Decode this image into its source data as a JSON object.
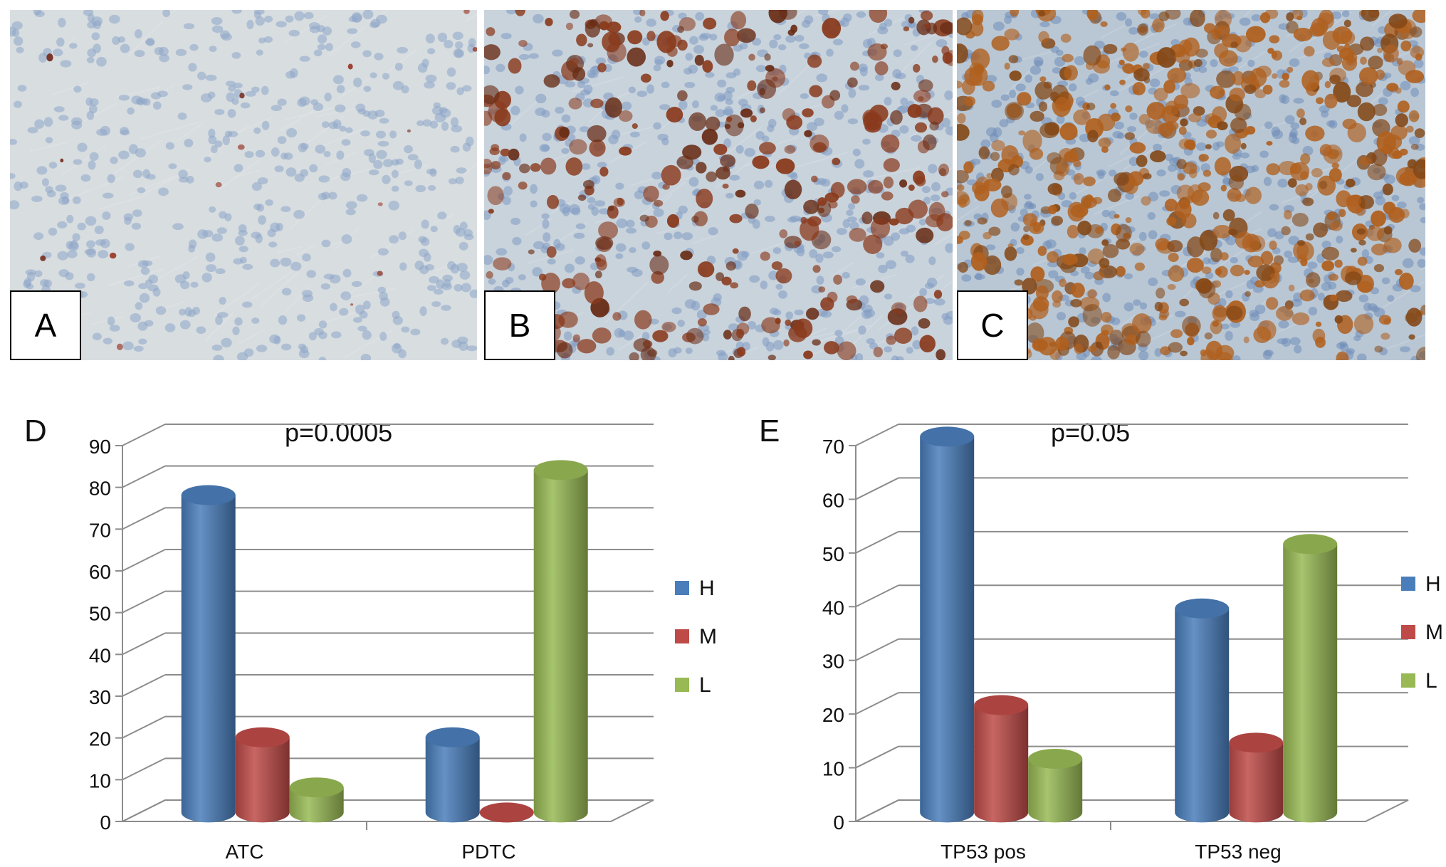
{
  "panels": [
    {
      "label": "A",
      "tissue": "#d8dde0",
      "stain_density": 0.01,
      "nucleus": "#8ea6c9",
      "stain": "#9a3a2a",
      "name": "micrograph-a"
    },
    {
      "label": "B",
      "tissue": "#c9d3dc",
      "stain_density": 0.35,
      "nucleus": "#7f9ac2",
      "stain": "#8a3a1c",
      "name": "micrograph-b"
    },
    {
      "label": "C",
      "tissue": "#b9c7d4",
      "stain_density": 0.7,
      "nucleus": "#6f8db8",
      "stain": "#b0601e",
      "name": "micrograph-c"
    }
  ],
  "colors": {
    "H": "#4a7ebb",
    "M": "#be4b48",
    "L": "#98b954"
  },
  "chart_data": [
    {
      "type": "bar",
      "panel_label": "D",
      "annotation": "p=0.0005",
      "categories": [
        "ATC",
        "PDTC"
      ],
      "ylim": [
        0,
        90
      ],
      "yticks": [
        0,
        10,
        20,
        30,
        40,
        50,
        60,
        70,
        80,
        90
      ],
      "grid": true,
      "legend": "right",
      "series": [
        {
          "name": "H",
          "values": [
            76,
            18
          ]
        },
        {
          "name": "M",
          "values": [
            18,
            0
          ]
        },
        {
          "name": "L",
          "values": [
            6,
            82
          ]
        }
      ]
    },
    {
      "type": "bar",
      "panel_label": "E",
      "annotation": "p=0.05",
      "categories": [
        "TP53 pos",
        "TP53 neg"
      ],
      "ylim": [
        0,
        70
      ],
      "yticks": [
        0,
        10,
        20,
        30,
        40,
        50,
        60,
        70
      ],
      "grid": true,
      "legend": "right",
      "series": [
        {
          "name": "H",
          "values": [
            70,
            38
          ]
        },
        {
          "name": "M",
          "values": [
            20,
            13
          ]
        },
        {
          "name": "L",
          "values": [
            10,
            50
          ]
        }
      ]
    }
  ]
}
